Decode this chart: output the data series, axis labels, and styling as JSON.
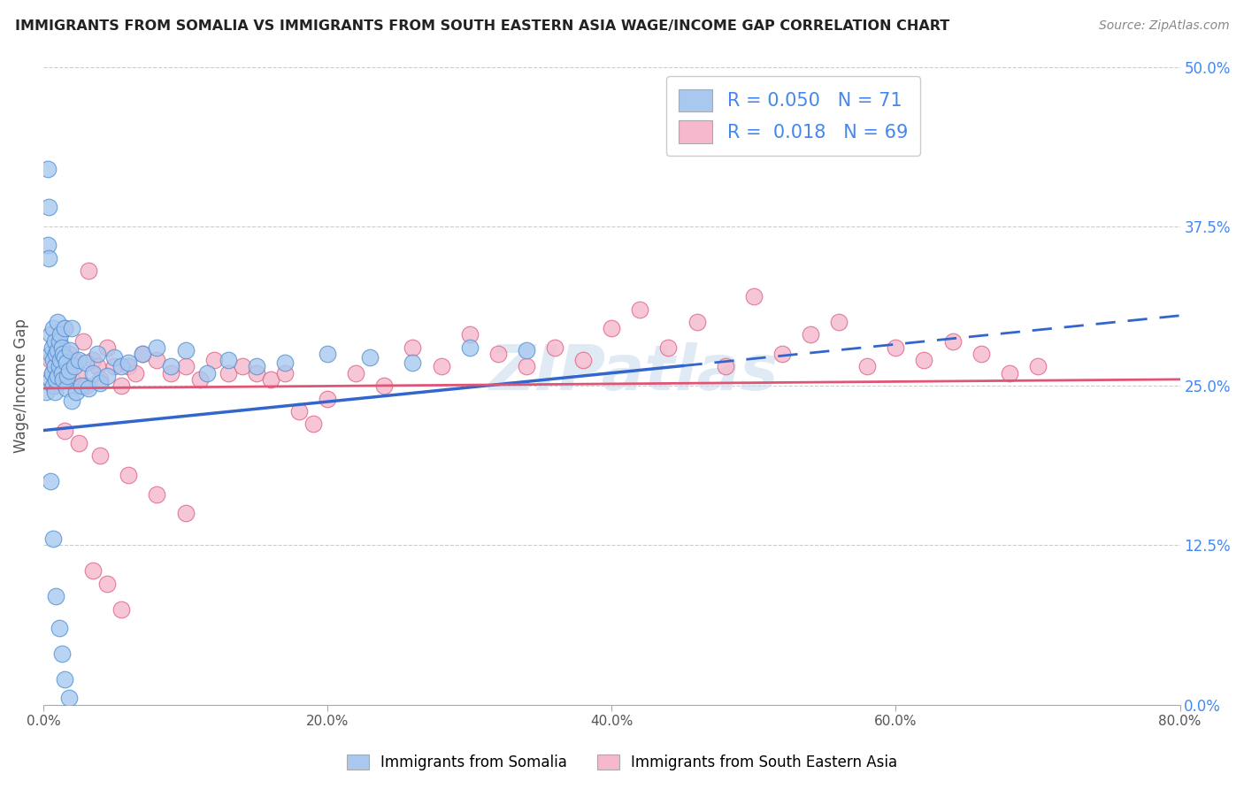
{
  "title": "IMMIGRANTS FROM SOMALIA VS IMMIGRANTS FROM SOUTH EASTERN ASIA WAGE/INCOME GAP CORRELATION CHART",
  "source": "Source: ZipAtlas.com",
  "ylabel": "Wage/Income Gap",
  "xlim": [
    0,
    0.8
  ],
  "ylim": [
    0,
    0.5
  ],
  "legend_label1": "Immigrants from Somalia",
  "legend_label2": "Immigrants from South Eastern Asia",
  "R1": "0.050",
  "N1": "71",
  "R2": "0.018",
  "N2": "69",
  "color1": "#a8c8f0",
  "color2": "#f5b8cc",
  "color1_edge": "#5090d0",
  "color2_edge": "#e06080",
  "color1_line": "#3366cc",
  "color2_line": "#e05575",
  "watermark": "ZIPatlas",
  "somalia_x": [
    0.002,
    0.003,
    0.003,
    0.004,
    0.004,
    0.005,
    0.005,
    0.005,
    0.006,
    0.006,
    0.007,
    0.007,
    0.007,
    0.008,
    0.008,
    0.008,
    0.009,
    0.009,
    0.01,
    0.01,
    0.01,
    0.011,
    0.011,
    0.012,
    0.012,
    0.013,
    0.013,
    0.014,
    0.014,
    0.015,
    0.015,
    0.016,
    0.016,
    0.017,
    0.018,
    0.019,
    0.02,
    0.02,
    0.022,
    0.023,
    0.025,
    0.027,
    0.03,
    0.032,
    0.035,
    0.038,
    0.04,
    0.045,
    0.05,
    0.055,
    0.06,
    0.07,
    0.08,
    0.09,
    0.1,
    0.115,
    0.13,
    0.15,
    0.17,
    0.2,
    0.23,
    0.26,
    0.3,
    0.34,
    0.005,
    0.007,
    0.009,
    0.011,
    0.013,
    0.015,
    0.018
  ],
  "somalia_y": [
    0.245,
    0.42,
    0.36,
    0.39,
    0.35,
    0.29,
    0.275,
    0.255,
    0.28,
    0.26,
    0.295,
    0.27,
    0.25,
    0.285,
    0.265,
    0.245,
    0.275,
    0.255,
    0.3,
    0.278,
    0.258,
    0.285,
    0.265,
    0.29,
    0.27,
    0.28,
    0.26,
    0.275,
    0.255,
    0.295,
    0.272,
    0.268,
    0.248,
    0.258,
    0.262,
    0.278,
    0.295,
    0.238,
    0.265,
    0.245,
    0.27,
    0.25,
    0.268,
    0.248,
    0.26,
    0.275,
    0.252,
    0.258,
    0.272,
    0.265,
    0.268,
    0.275,
    0.28,
    0.265,
    0.278,
    0.26,
    0.27,
    0.265,
    0.268,
    0.275,
    0.272,
    0.268,
    0.28,
    0.278,
    0.175,
    0.13,
    0.085,
    0.06,
    0.04,
    0.02,
    0.005
  ],
  "sea_x": [
    0.005,
    0.006,
    0.008,
    0.01,
    0.012,
    0.015,
    0.018,
    0.02,
    0.022,
    0.025,
    0.028,
    0.03,
    0.032,
    0.035,
    0.038,
    0.04,
    0.045,
    0.05,
    0.055,
    0.06,
    0.065,
    0.07,
    0.08,
    0.09,
    0.1,
    0.11,
    0.12,
    0.13,
    0.14,
    0.15,
    0.16,
    0.17,
    0.18,
    0.19,
    0.2,
    0.22,
    0.24,
    0.26,
    0.28,
    0.3,
    0.32,
    0.34,
    0.36,
    0.38,
    0.4,
    0.42,
    0.44,
    0.46,
    0.48,
    0.5,
    0.52,
    0.54,
    0.56,
    0.58,
    0.6,
    0.62,
    0.64,
    0.66,
    0.68,
    0.7,
    0.04,
    0.06,
    0.08,
    0.1,
    0.015,
    0.025,
    0.035,
    0.045,
    0.055
  ],
  "sea_y": [
    0.27,
    0.26,
    0.25,
    0.28,
    0.265,
    0.295,
    0.275,
    0.255,
    0.27,
    0.26,
    0.285,
    0.25,
    0.34,
    0.27,
    0.265,
    0.255,
    0.28,
    0.265,
    0.25,
    0.265,
    0.26,
    0.275,
    0.27,
    0.26,
    0.265,
    0.255,
    0.27,
    0.26,
    0.265,
    0.26,
    0.255,
    0.26,
    0.23,
    0.22,
    0.24,
    0.26,
    0.25,
    0.28,
    0.265,
    0.29,
    0.275,
    0.265,
    0.28,
    0.27,
    0.295,
    0.31,
    0.28,
    0.3,
    0.265,
    0.32,
    0.275,
    0.29,
    0.3,
    0.265,
    0.28,
    0.27,
    0.285,
    0.275,
    0.26,
    0.265,
    0.195,
    0.18,
    0.165,
    0.15,
    0.215,
    0.205,
    0.105,
    0.095,
    0.075
  ],
  "trend1_x0": 0.0,
  "trend1_x1": 0.8,
  "trend1_y0": 0.215,
  "trend1_y1": 0.305,
  "trend1_solid_x1": 0.45,
  "trend2_x0": 0.0,
  "trend2_x1": 0.8,
  "trend2_y0": 0.248,
  "trend2_y1": 0.255
}
